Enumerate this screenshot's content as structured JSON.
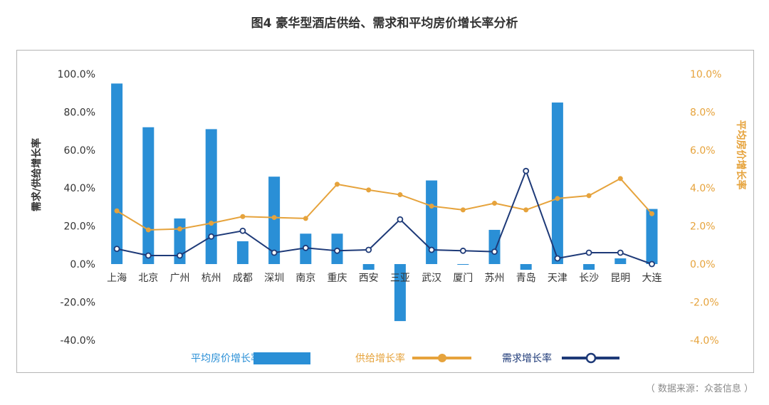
{
  "figure": {
    "title": "图4 豪华型酒店供给、需求和平均房价增长率分析",
    "source": "（ 数据来源：众荟信息 ）"
  },
  "colors": {
    "bar": "#2a8fd6",
    "supply": "#e6a33c",
    "demand": "#1e3a78",
    "axis_left_text": "#333333",
    "axis_right_text": "#e6a33c"
  },
  "chart_data": {
    "type": "bar",
    "categories": [
      "上海",
      "北京",
      "广州",
      "杭州",
      "成都",
      "深圳",
      "南京",
      "重庆",
      "西安",
      "三亚",
      "武汉",
      "厦门",
      "苏州",
      "青岛",
      "天津",
      "长沙",
      "昆明",
      "大连"
    ],
    "series": [
      {
        "name": "平均房价增长率",
        "type": "bar",
        "axis": "right",
        "values": [
          9.5,
          7.2,
          2.4,
          7.1,
          1.2,
          4.6,
          1.6,
          1.6,
          -0.3,
          -3.0,
          4.4,
          0.0,
          1.8,
          -0.3,
          8.5,
          -0.3,
          0.3,
          2.9
        ]
      },
      {
        "name": "供给增长率",
        "type": "line",
        "axis": "right",
        "marker": "filled-circle",
        "values": [
          2.8,
          1.8,
          1.85,
          2.15,
          2.5,
          2.45,
          2.4,
          4.2,
          3.9,
          3.65,
          3.05,
          2.85,
          3.2,
          2.85,
          3.45,
          3.6,
          4.5,
          2.65
        ]
      },
      {
        "name": "需求增长率",
        "type": "line",
        "axis": "left",
        "marker": "hollow-circle",
        "values": [
          8,
          4.5,
          4.5,
          14.5,
          17.5,
          6,
          8.5,
          7,
          7.5,
          23.5,
          7.5,
          7,
          6.5,
          49,
          3,
          6,
          6,
          0
        ]
      }
    ],
    "y_left": {
      "label": "需求/供给增长率",
      "ylim": [
        -40,
        100
      ],
      "ticks": [
        "-40.0%",
        "-20.0%",
        "0.0%",
        "20.0%",
        "40.0%",
        "60.0%",
        "80.0%",
        "100.0%"
      ]
    },
    "y_right": {
      "label": "平均房价增长率",
      "ylim": [
        -4,
        10
      ],
      "ticks": [
        "-4.0%",
        "-2.0%",
        "0.0%",
        "2.0%",
        "4.0%",
        "6.0%",
        "8.0%",
        "10.0%"
      ]
    },
    "grid": false,
    "legend": {
      "position": "bottom",
      "items": [
        "平均房价增长率",
        "供给增长率",
        "需求增长率"
      ]
    }
  }
}
